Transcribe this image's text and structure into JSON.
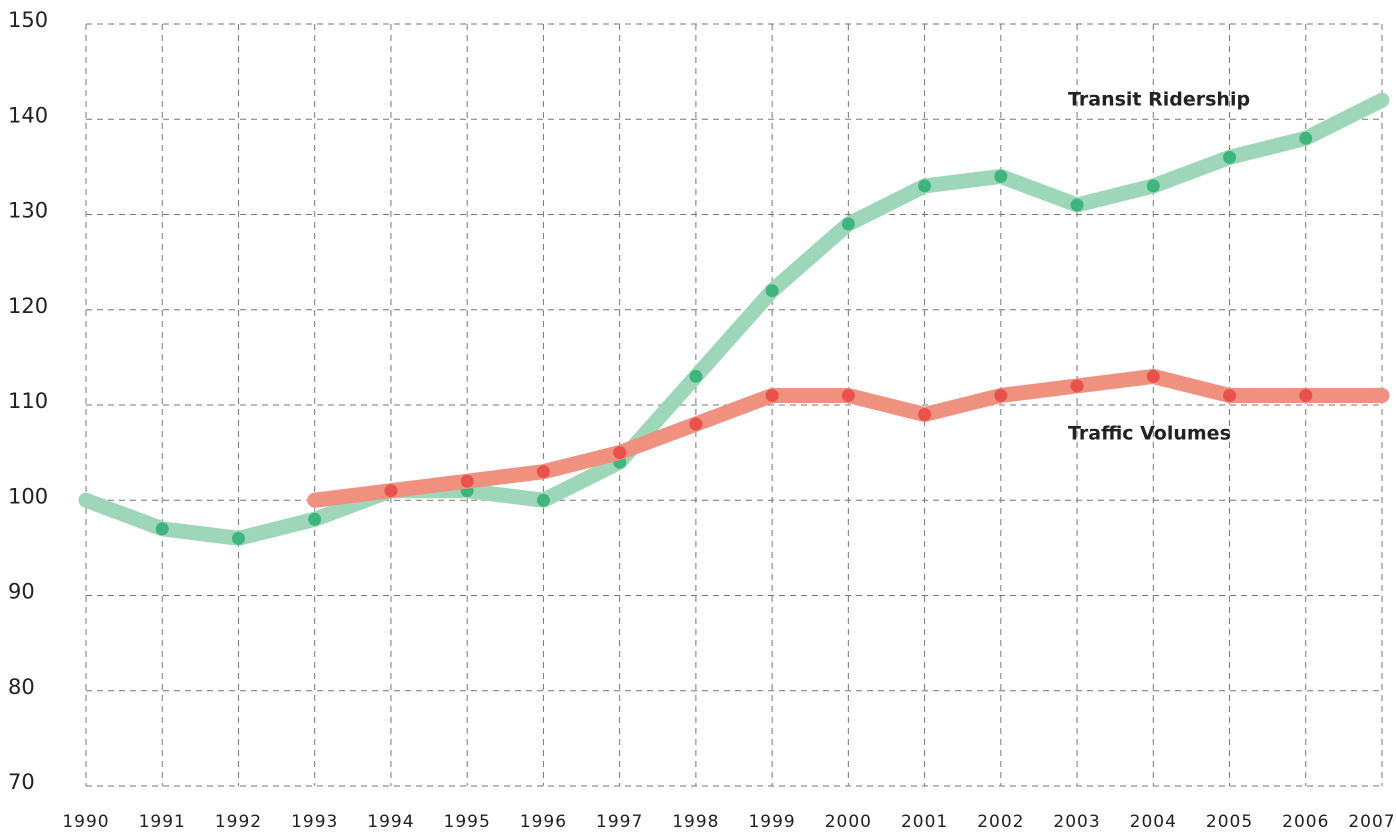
{
  "chart_data": {
    "type": "line",
    "x": [
      1990,
      1991,
      1992,
      1993,
      1994,
      1995,
      1996,
      1997,
      1998,
      1999,
      2000,
      2001,
      2002,
      2003,
      2004,
      2005,
      2006,
      2007
    ],
    "series": [
      {
        "name": "Transit Ridership",
        "color": "#9dd6b9",
        "marker_color": "#3db57d",
        "values": [
          100,
          97,
          96,
          98,
          101,
          101,
          100,
          104,
          113,
          122,
          129,
          133,
          134,
          131,
          133,
          136,
          138,
          142
        ]
      },
      {
        "name": "Traffic Volumes",
        "color": "#f0907f",
        "marker_color": "#e8524a",
        "values": [
          null,
          null,
          null,
          100,
          101,
          102,
          103,
          105,
          108,
          111,
          111,
          109,
          111,
          112,
          113,
          111,
          111,
          111
        ]
      }
    ],
    "xlim": [
      1990,
      2007
    ],
    "xticks": [
      1990,
      1991,
      1992,
      1993,
      1994,
      1995,
      1996,
      1997,
      1998,
      1999,
      2000,
      2001,
      2002,
      2003,
      2004,
      2005,
      2006,
      2007
    ],
    "ylim": [
      70,
      150
    ],
    "yticks": [
      70,
      80,
      90,
      100,
      110,
      120,
      130,
      140,
      150
    ],
    "grid": true
  }
}
